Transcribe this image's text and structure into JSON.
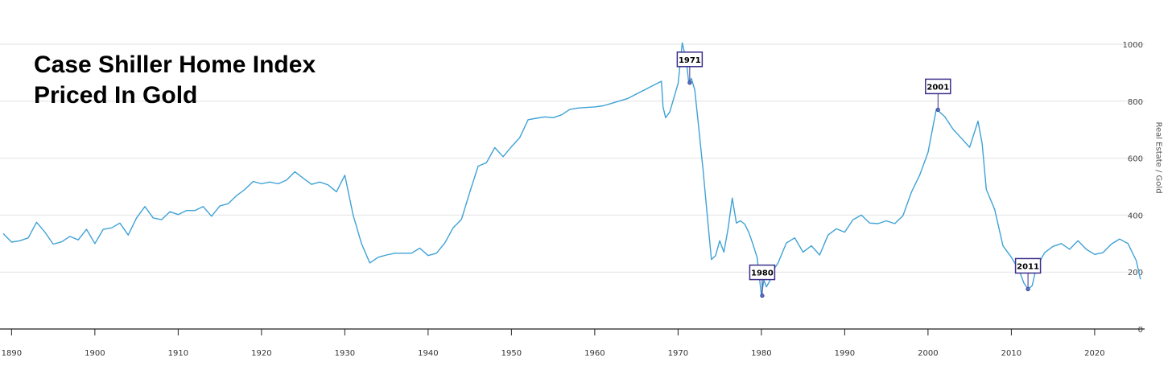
{
  "title": {
    "line1": "Case Shiller Home Index",
    "line2": "Priced In Gold"
  },
  "chart_data": {
    "type": "line",
    "title": "Case Shiller Home Index Priced In Gold",
    "xlabel": "",
    "ylabel": "Real Estate / Gold",
    "xlim": [
      1889,
      2026
    ],
    "ylim": [
      0,
      1000
    ],
    "x_ticks": [
      1890,
      1900,
      1910,
      1920,
      1930,
      1940,
      1950,
      1960,
      1970,
      1980,
      1990,
      2000,
      2010,
      2020
    ],
    "y_ticks": [
      0,
      200,
      400,
      600,
      800,
      1000
    ],
    "grid": true,
    "line_color": "#3fa2d6",
    "callout_color": "#3b2e8a",
    "series": [
      {
        "points": [
          [
            1889,
            335
          ],
          [
            1890,
            305
          ],
          [
            1891,
            310
          ],
          [
            1892,
            320
          ],
          [
            1893,
            375
          ],
          [
            1894,
            340
          ],
          [
            1895,
            298
          ],
          [
            1896,
            306
          ],
          [
            1897,
            325
          ],
          [
            1898,
            313
          ],
          [
            1899,
            350
          ],
          [
            1900,
            300
          ],
          [
            1901,
            350
          ],
          [
            1902,
            355
          ],
          [
            1903,
            372
          ],
          [
            1904,
            330
          ],
          [
            1905,
            390
          ],
          [
            1906,
            430
          ],
          [
            1907,
            390
          ],
          [
            1908,
            384
          ],
          [
            1909,
            412
          ],
          [
            1910,
            402
          ],
          [
            1911,
            416
          ],
          [
            1912,
            416
          ],
          [
            1913,
            430
          ],
          [
            1914,
            396
          ],
          [
            1915,
            432
          ],
          [
            1916,
            440
          ],
          [
            1917,
            468
          ],
          [
            1918,
            490
          ],
          [
            1919,
            518
          ],
          [
            1920,
            510
          ],
          [
            1921,
            516
          ],
          [
            1922,
            510
          ],
          [
            1923,
            523
          ],
          [
            1924,
            552
          ],
          [
            1925,
            530
          ],
          [
            1926,
            508
          ],
          [
            1927,
            516
          ],
          [
            1928,
            506
          ],
          [
            1929,
            482
          ],
          [
            1930,
            540
          ],
          [
            1931,
            400
          ],
          [
            1932,
            300
          ],
          [
            1933,
            232
          ],
          [
            1934,
            252
          ],
          [
            1935,
            260
          ],
          [
            1936,
            266
          ],
          [
            1937,
            266
          ],
          [
            1938,
            266
          ],
          [
            1939,
            284
          ],
          [
            1940,
            258
          ],
          [
            1941,
            266
          ],
          [
            1942,
            302
          ],
          [
            1943,
            355
          ],
          [
            1944,
            385
          ],
          [
            1945,
            480
          ],
          [
            1946,
            572
          ],
          [
            1947,
            584
          ],
          [
            1948,
            637
          ],
          [
            1949,
            605
          ],
          [
            1950,
            640
          ],
          [
            1951,
            672
          ],
          [
            1952,
            735
          ],
          [
            1953,
            740
          ],
          [
            1954,
            745
          ],
          [
            1955,
            742
          ],
          [
            1956,
            752
          ],
          [
            1957,
            771
          ],
          [
            1958,
            776
          ],
          [
            1959,
            778
          ],
          [
            1960,
            780
          ],
          [
            1961,
            784
          ],
          [
            1962,
            792
          ],
          [
            1963,
            801
          ],
          [
            1964,
            810
          ],
          [
            1965,
            825
          ],
          [
            1966,
            840
          ],
          [
            1967,
            855
          ],
          [
            1968,
            870
          ],
          [
            1968.2,
            780
          ],
          [
            1968.5,
            742
          ],
          [
            1969,
            762
          ],
          [
            1969.5,
            812
          ],
          [
            1970,
            862
          ],
          [
            1970.5,
            1005
          ],
          [
            1971,
            940
          ],
          [
            1971.3,
            862
          ],
          [
            1971.6,
            880
          ],
          [
            1972,
            840
          ],
          [
            1972.5,
            700
          ],
          [
            1973,
            560
          ],
          [
            1973.5,
            400
          ],
          [
            1974,
            244
          ],
          [
            1974.5,
            258
          ],
          [
            1975,
            310
          ],
          [
            1975.5,
            270
          ],
          [
            1976,
            352
          ],
          [
            1976.5,
            460
          ],
          [
            1977,
            372
          ],
          [
            1977.5,
            380
          ],
          [
            1978,
            368
          ],
          [
            1978.5,
            338
          ],
          [
            1979,
            297
          ],
          [
            1979.5,
            250
          ],
          [
            1980,
            118
          ],
          [
            1980.3,
            172
          ],
          [
            1980.6,
            148
          ],
          [
            1981,
            168
          ],
          [
            1981.5,
            210
          ],
          [
            1982,
            232
          ],
          [
            1983,
            302
          ],
          [
            1984,
            320
          ],
          [
            1985,
            270
          ],
          [
            1986,
            292
          ],
          [
            1987,
            260
          ],
          [
            1988,
            330
          ],
          [
            1989,
            352
          ],
          [
            1990,
            340
          ],
          [
            1991,
            384
          ],
          [
            1992,
            400
          ],
          [
            1993,
            372
          ],
          [
            1994,
            370
          ],
          [
            1995,
            380
          ],
          [
            1996,
            370
          ],
          [
            1997,
            398
          ],
          [
            1998,
            480
          ],
          [
            1999,
            540
          ],
          [
            2000,
            620
          ],
          [
            2001,
            772
          ],
          [
            2002,
            746
          ],
          [
            2003,
            702
          ],
          [
            2004,
            670
          ],
          [
            2005,
            638
          ],
          [
            2006,
            730
          ],
          [
            2006.5,
            650
          ],
          [
            2007,
            490
          ],
          [
            2008,
            420
          ],
          [
            2009,
            292
          ],
          [
            2010,
            252
          ],
          [
            2011,
            202
          ],
          [
            2011.5,
            162
          ],
          [
            2012,
            140
          ],
          [
            2012.5,
            152
          ],
          [
            2013,
            216
          ],
          [
            2014,
            268
          ],
          [
            2015,
            290
          ],
          [
            2016,
            300
          ],
          [
            2017,
            280
          ],
          [
            2018,
            310
          ],
          [
            2019,
            280
          ],
          [
            2020,
            262
          ],
          [
            2021,
            268
          ],
          [
            2022,
            298
          ],
          [
            2023,
            316
          ],
          [
            2024,
            300
          ],
          [
            2025,
            240
          ],
          [
            2025.5,
            175
          ]
        ]
      }
    ],
    "annotations": [
      {
        "label": "1971",
        "x": 1971.4,
        "y": 865
      },
      {
        "label": "1980",
        "x": 1980.1,
        "y": 117
      },
      {
        "label": "2001",
        "x": 2001.2,
        "y": 770
      },
      {
        "label": "2011",
        "x": 2012.0,
        "y": 140
      }
    ]
  }
}
